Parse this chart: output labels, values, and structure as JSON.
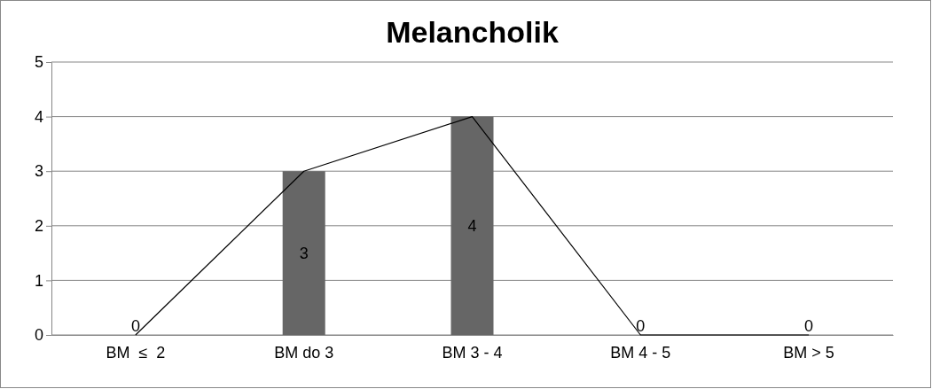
{
  "chart_data": {
    "type": "bar",
    "title": "Melancholik",
    "categories": [
      "BM  ≤  2",
      "BM do 3",
      "BM 3 - 4",
      "BM 4 - 5",
      "BM > 5"
    ],
    "series": [
      {
        "color": "#666666",
        "values": [
          0,
          3,
          4,
          0,
          0
        ],
        "value_labels": [
          "0",
          "3",
          "4",
          "0",
          "0"
        ]
      },
      {
        "type": "line",
        "color": "#000000",
        "values": [
          0,
          3,
          4,
          0,
          0
        ]
      }
    ],
    "ylim": [
      0,
      5
    ],
    "yticks": [
      0,
      1,
      2,
      3,
      4,
      5
    ],
    "grid": "y",
    "marker": "none",
    "line_style": "solid"
  }
}
